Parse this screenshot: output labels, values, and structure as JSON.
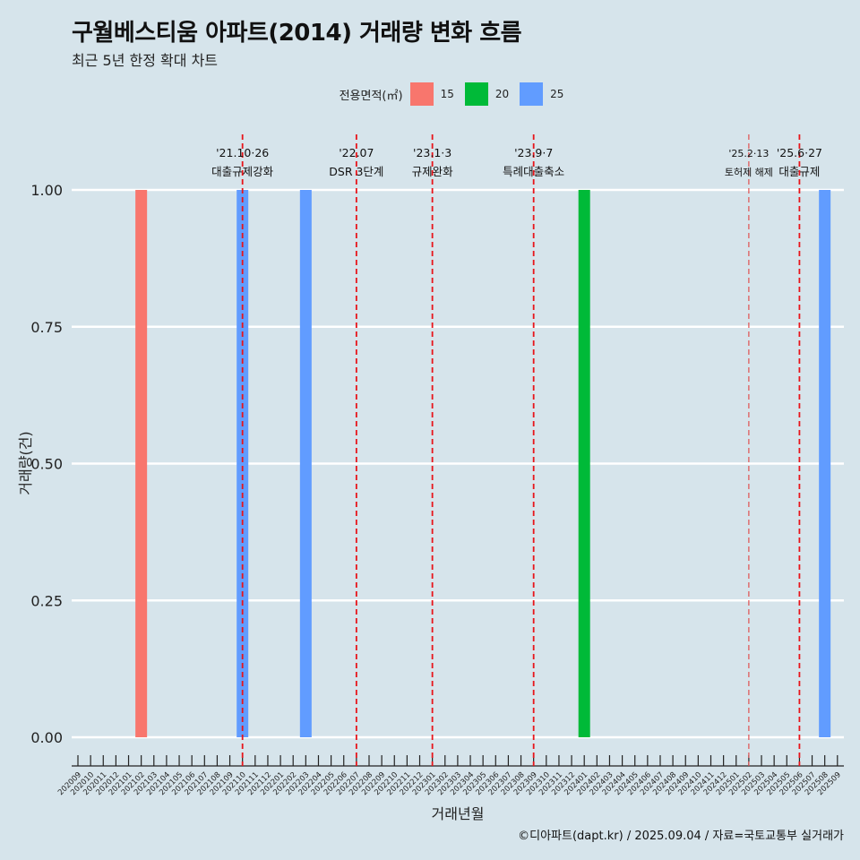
{
  "title": "구월베스티움 아파트(2014) 거래량 변화 흐름",
  "subtitle": "최근 5년 한정 확대 차트",
  "caption": "©디아파트(dapt.kr) / 2025.09.04 / 자료=국토교통부 실거래가",
  "legend": {
    "title": "전용면적(㎡)",
    "items": [
      {
        "label": "15",
        "color": "#f8766d"
      },
      {
        "label": "20",
        "color": "#00ba38"
      },
      {
        "label": "25",
        "color": "#619cff"
      }
    ]
  },
  "chart_data": {
    "type": "bar",
    "xlabel": "거래년월",
    "ylabel": "거래량(건)",
    "ylim": [
      0,
      1
    ],
    "yticks": [
      "0.00",
      "0.25",
      "0.50",
      "0.75",
      "1.00"
    ],
    "grid": "horizontal",
    "categories": [
      "202009",
      "202010",
      "202011",
      "202012",
      "202101",
      "202102",
      "202103",
      "202104",
      "202105",
      "202106",
      "202107",
      "202108",
      "202109",
      "202110",
      "202111",
      "202112",
      "202201",
      "202202",
      "202203",
      "202204",
      "202205",
      "202206",
      "202207",
      "202208",
      "202209",
      "202210",
      "202211",
      "202212",
      "202301",
      "202302",
      "202303",
      "202304",
      "202305",
      "202306",
      "202307",
      "202308",
      "202309",
      "202310",
      "202311",
      "202312",
      "202401",
      "202402",
      "202403",
      "202404",
      "202405",
      "202406",
      "202407",
      "202408",
      "202409",
      "202410",
      "202411",
      "202412",
      "202501",
      "202502",
      "202503",
      "202504",
      "202505",
      "202506",
      "202507",
      "202508",
      "202509"
    ],
    "bars": [
      {
        "category": "202102",
        "series": "15",
        "value": 1
      },
      {
        "category": "202110",
        "series": "25",
        "value": 1
      },
      {
        "category": "202203",
        "series": "25",
        "value": 1
      },
      {
        "category": "202401",
        "series": "20",
        "value": 1
      },
      {
        "category": "202508",
        "series": "25",
        "value": 1
      }
    ],
    "events": [
      {
        "category": "202110",
        "date": "'21.10·26",
        "label": "대출규제강화",
        "style": "bold"
      },
      {
        "category": "202207",
        "date": "'22.07",
        "label": "DSR 3단계",
        "style": "bold"
      },
      {
        "category": "202301",
        "date": "'23.1·3",
        "label": "규제완화",
        "style": "bold"
      },
      {
        "category": "202309",
        "date": "'23.9·7",
        "label": "특례대출축소",
        "style": "bold"
      },
      {
        "category": "202502",
        "date": "'25.2·13",
        "label": "토허제 해제",
        "style": "thin"
      },
      {
        "category": "202506",
        "date": "'25.6·27",
        "label": "대출규제",
        "style": "bold"
      }
    ]
  }
}
